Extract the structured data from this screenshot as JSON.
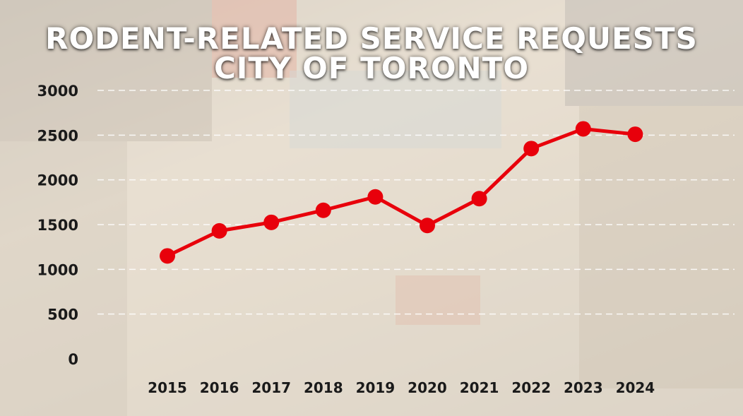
{
  "chart_data": {
    "type": "line",
    "title": [
      "RODENT-RELATED SERVICE REQUESTS",
      "CITY OF TORONTO"
    ],
    "xlabel": "",
    "ylabel": "",
    "categories": [
      "2015",
      "2016",
      "2017",
      "2018",
      "2019",
      "2020",
      "2021",
      "2022",
      "2023",
      "2024"
    ],
    "series": [
      {
        "values": [
          1150,
          1430,
          1525,
          1660,
          1810,
          1490,
          1790,
          2350,
          2570,
          2510
        ]
      }
    ],
    "ylim": [
      0,
      3000
    ],
    "yticks": [
      "0",
      "500",
      "1000",
      "1500",
      "2000",
      "2500",
      "3000"
    ],
    "grid": "horizontal-dashed",
    "legend": "none",
    "line_color": "#e8000b",
    "marker_color": "#e8000b",
    "text_color": "#1a1a1a"
  }
}
